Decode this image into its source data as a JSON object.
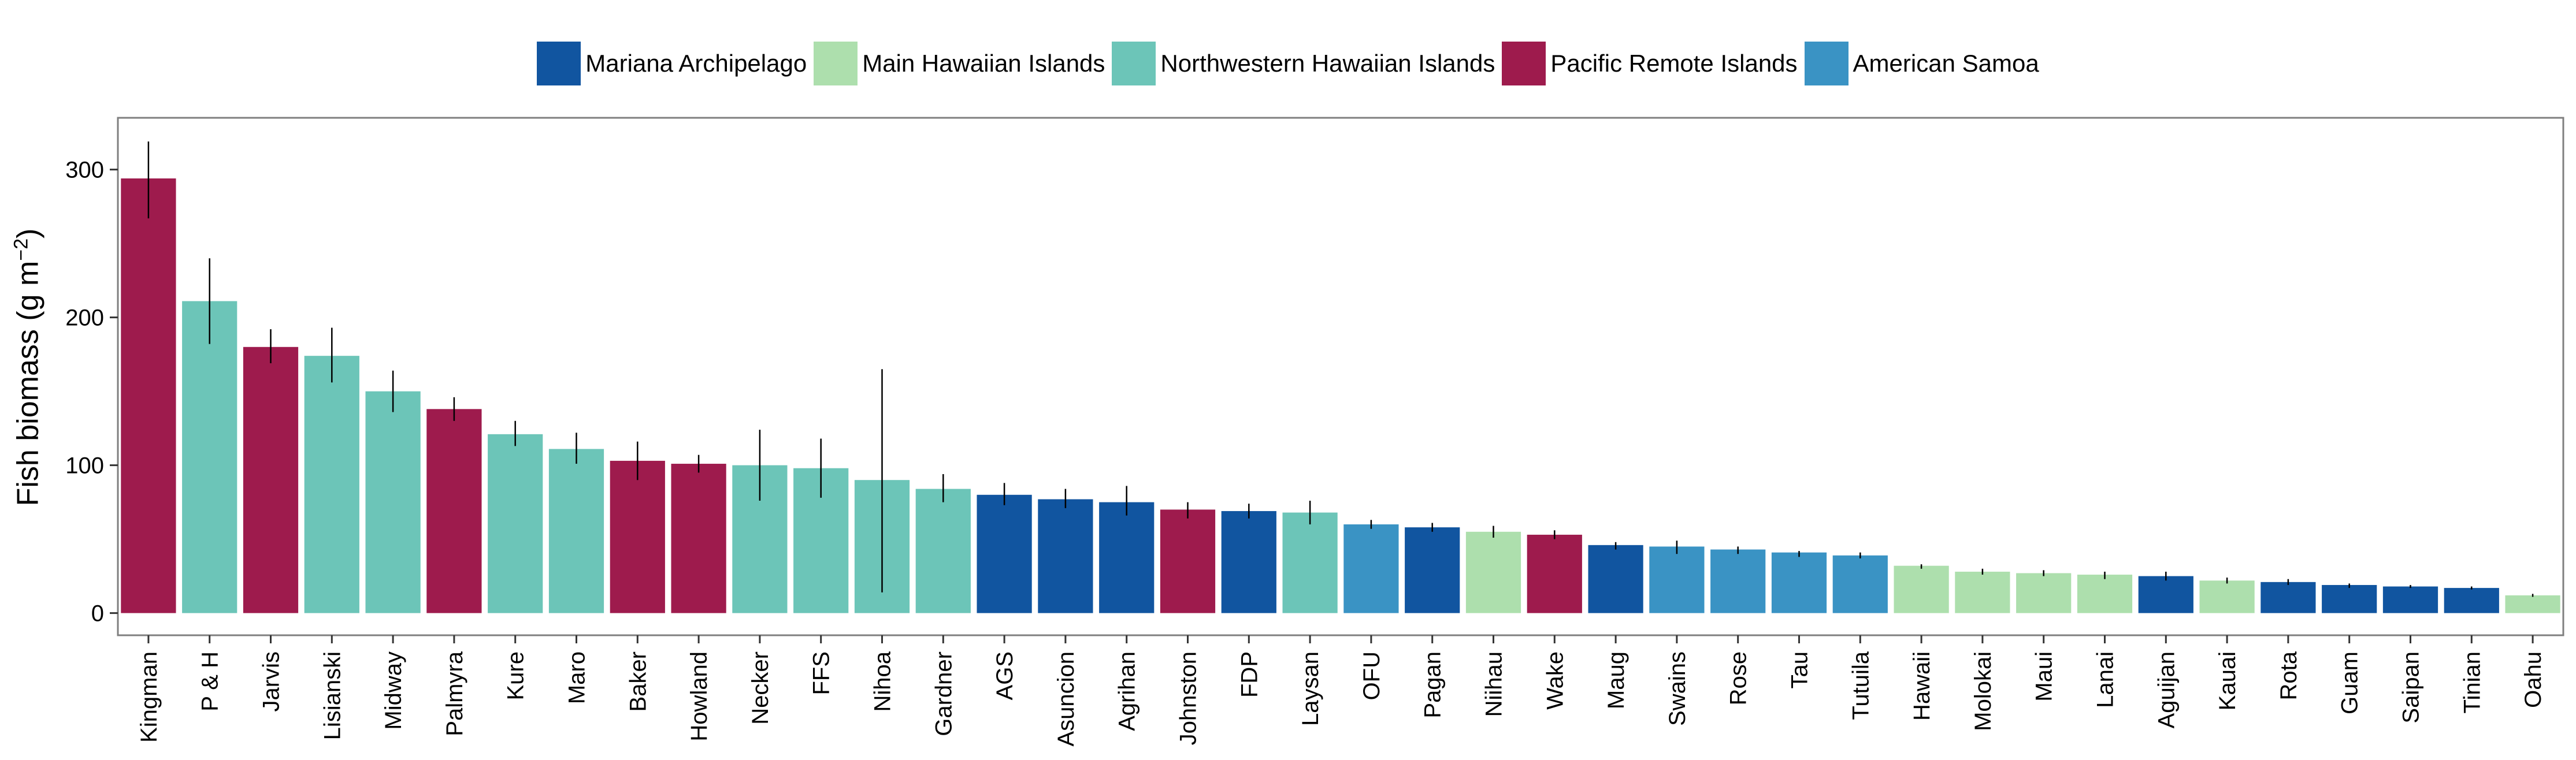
{
  "chart_data": {
    "type": "bar",
    "ylabel_text": "Fish biomass (g m",
    "ylabel_sup": "−2",
    "ylabel_close": ")",
    "ylim": [
      -15,
      335
    ],
    "yticks": [
      0,
      100,
      200,
      300
    ],
    "grid": false,
    "legend_position": "top",
    "groups": [
      {
        "name": "Mariana Archipelago",
        "color": "#1155A0"
      },
      {
        "name": "Main Hawaiian Islands",
        "color": "#ADDFAD"
      },
      {
        "name": "Northwestern Hawaiian Islands",
        "color": "#6CC5B8"
      },
      {
        "name": "Pacific Remote Islands",
        "color": "#9E1B4D"
      },
      {
        "name": "American Samoa",
        "color": "#3A93C4"
      }
    ],
    "categories": [
      "Kingman",
      "P & H",
      "Jarvis",
      "Lisianski",
      "Midway",
      "Palmyra",
      "Kure",
      "Maro",
      "Baker",
      "Howland",
      "Necker",
      "FFS",
      "Nihoa",
      "Gardner",
      "AGS",
      "Asuncion",
      "Agrihan",
      "Johnston",
      "FDP",
      "Laysan",
      "OFU",
      "Pagan",
      "Niihau",
      "Wake",
      "Maug",
      "Swains",
      "Rose",
      "Tau",
      "Tutuila",
      "Hawaii",
      "Molokai",
      "Maui",
      "Lanai",
      "Aguijan",
      "Kauai",
      "Rota",
      "Guam",
      "Saipan",
      "Tinian",
      "Oahu"
    ],
    "values": [
      294,
      211,
      180,
      174,
      150,
      138,
      121,
      111,
      103,
      101,
      100,
      98,
      90,
      84,
      80,
      77,
      75,
      70,
      69,
      68,
      60,
      58,
      55,
      53,
      46,
      45,
      43,
      41,
      39,
      32,
      28,
      27,
      26,
      25,
      22,
      21,
      19,
      18,
      17,
      12
    ],
    "error_low": [
      267,
      182,
      169,
      156,
      136,
      130,
      113,
      101,
      90,
      95,
      76,
      78,
      14,
      75,
      73,
      71,
      66,
      64,
      64,
      60,
      57,
      55,
      51,
      50,
      43,
      40,
      40,
      38,
      37,
      30,
      26,
      25,
      23,
      22,
      20,
      19,
      17,
      17,
      16,
      11
    ],
    "error_high": [
      319,
      240,
      192,
      193,
      164,
      146,
      130,
      122,
      116,
      107,
      124,
      118,
      165,
      94,
      88,
      84,
      86,
      75,
      74,
      76,
      63,
      61,
      59,
      56,
      48,
      49,
      45,
      42,
      41,
      33,
      30,
      29,
      28,
      28,
      24,
      23,
      20,
      19,
      18,
      13
    ],
    "group_index": [
      3,
      2,
      3,
      2,
      2,
      3,
      2,
      2,
      3,
      3,
      2,
      2,
      2,
      2,
      0,
      0,
      0,
      3,
      0,
      2,
      4,
      0,
      1,
      3,
      0,
      4,
      4,
      4,
      4,
      1,
      1,
      1,
      1,
      0,
      1,
      0,
      0,
      0,
      0,
      1
    ]
  }
}
